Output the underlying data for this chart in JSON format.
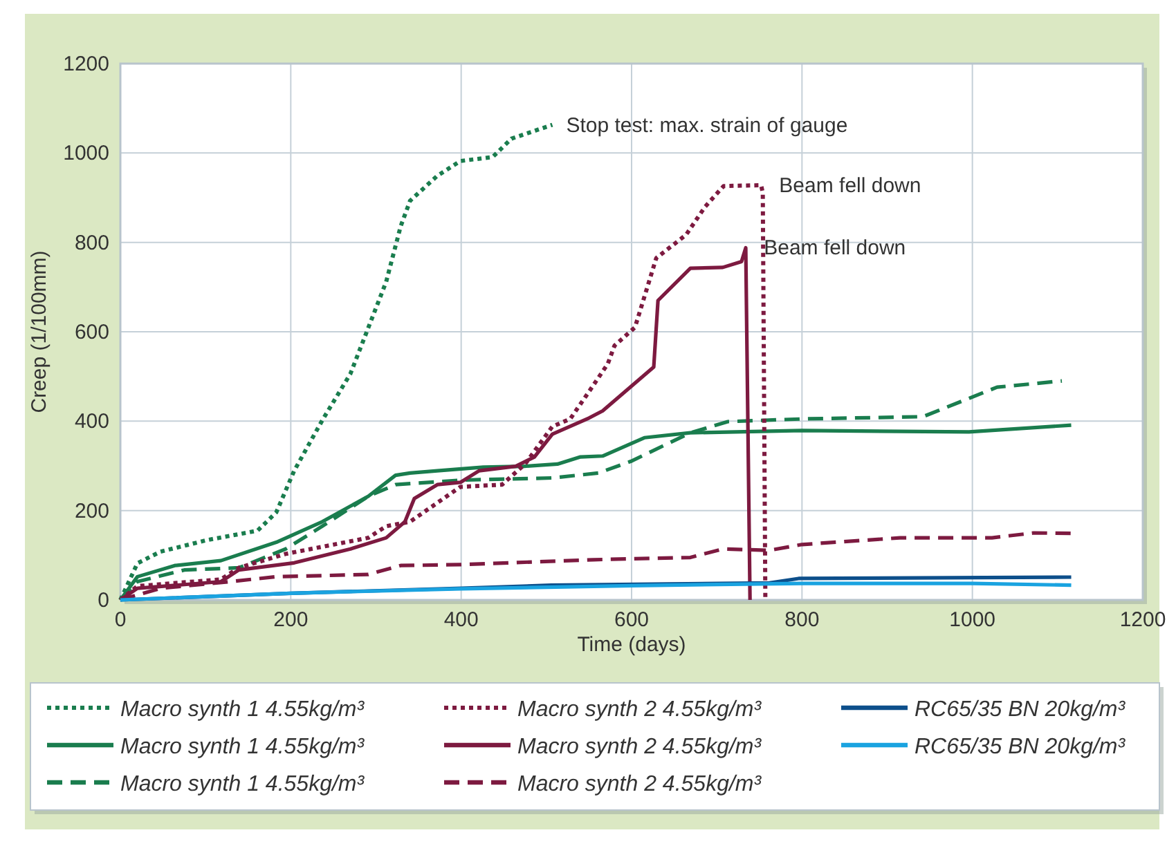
{
  "chart_data": {
    "type": "line",
    "xlabel": "Time (days)",
    "ylabel": "Creep (1/100mm)",
    "xlim": [
      0,
      1200
    ],
    "ylim": [
      0,
      1200
    ],
    "xticks": [
      0,
      200,
      400,
      600,
      800,
      1000,
      1200
    ],
    "yticks": [
      0,
      200,
      400,
      600,
      800,
      1000,
      1200
    ],
    "grid": true,
    "legend": "bottom",
    "series": [
      {
        "name": "Macro synth 1  4.55kg/m³",
        "color": "#1a7d4e",
        "line_style": "dotted",
        "x": [
          0,
          20,
          47,
          102,
          161,
          183,
          204,
          237,
          270,
          291,
          312,
          329,
          340,
          372,
          399,
          437,
          459,
          507
        ],
        "values": [
          0,
          82,
          108,
          134,
          155,
          196,
          289,
          402,
          506,
          609,
          712,
          836,
          893,
          949,
          982,
          991,
          1032,
          1063
        ]
      },
      {
        "name": "Macro synth 1  4.55kg/m³",
        "color": "#1a7d4e",
        "line_style": "solid",
        "x": [
          0,
          20,
          64,
          118,
          183,
          237,
          291,
          323,
          340,
          372,
          426,
          474,
          513,
          540,
          566,
          615,
          669,
          800,
          996,
          1116
        ],
        "values": [
          0,
          52,
          77,
          88,
          129,
          175,
          232,
          279,
          284,
          289,
          297,
          299,
          304,
          320,
          322,
          363,
          374,
          379,
          376,
          391
        ]
      },
      {
        "name": "Macro synth 1  4.55kg/m³",
        "color": "#1a7d4e",
        "line_style": "dashed",
        "x": [
          0,
          20,
          75,
          139,
          194,
          237,
          291,
          323,
          399,
          507,
          561,
          599,
          669,
          713,
          800,
          942,
          996,
          1029,
          1105
        ],
        "values": [
          0,
          41,
          67,
          72,
          114,
          165,
          232,
          258,
          268,
          273,
          284,
          310,
          374,
          399,
          405,
          410,
          451,
          476,
          490
        ]
      },
      {
        "name": "Macro synth 2  4.55kg/m³",
        "color": "#7d1a40",
        "line_style": "dotted",
        "x": [
          0,
          20,
          118,
          139,
          194,
          291,
          312,
          340,
          399,
          448,
          475,
          507,
          528,
          550,
          572,
          580,
          604,
          629,
          664,
          686,
          708,
          752,
          754,
          757
        ],
        "values": [
          0,
          31,
          46,
          72,
          103,
          139,
          165,
          175,
          253,
          258,
          304,
          388,
          405,
          466,
          528,
          569,
          610,
          765,
          817,
          879,
          926,
          928,
          911,
          0
        ]
      },
      {
        "name": "Macro synth 2  4.55kg/m³",
        "color": "#7d1a40",
        "line_style": "solid",
        "x": [
          0,
          20,
          118,
          139,
          204,
          270,
          312,
          334,
          345,
          372,
          399,
          421,
          464,
          486,
          507,
          550,
          566,
          626,
          631,
          669,
          707,
          729,
          734,
          739
        ],
        "values": [
          0,
          26,
          41,
          67,
          83,
          114,
          139,
          175,
          227,
          258,
          263,
          289,
          299,
          320,
          371,
          407,
          423,
          521,
          670,
          742,
          744,
          757,
          788,
          0
        ]
      },
      {
        "name": "Macro synth 2  4.55kg/m³",
        "color": "#7d1a40",
        "line_style": "dashed",
        "x": [
          0,
          47,
          129,
          183,
          291,
          329,
          399,
          555,
          669,
          707,
          762,
          800,
          915,
          1023,
          1072,
          1116
        ],
        "values": [
          0,
          26,
          41,
          52,
          57,
          77,
          79,
          90,
          95,
          114,
          111,
          124,
          139,
          139,
          150,
          149
        ]
      },
      {
        "name": "RC65/35 BN 20kg/m³",
        "color": "#0d4f8b",
        "line_style": "solid",
        "x": [
          0,
          200,
          400,
          506,
          762,
          796,
          1116
        ],
        "values": [
          0,
          15,
          26,
          33,
          38,
          48,
          51
        ]
      },
      {
        "name": "RC65/35 BN 20kg/m³",
        "color": "#1aa3e0",
        "line_style": "solid",
        "x": [
          0,
          200,
          400,
          600,
          800,
          1000,
          1116
        ],
        "values": [
          0,
          15,
          25,
          32,
          37,
          37,
          33
        ]
      }
    ],
    "annotations": [
      {
        "text": "Stop test: max. strain of gauge",
        "x": 507,
        "y": 1063
      },
      {
        "text": "Beam fell down",
        "x": 757,
        "y": 928
      },
      {
        "text": "Beam fell down",
        "x": 739,
        "y": 788
      }
    ]
  }
}
